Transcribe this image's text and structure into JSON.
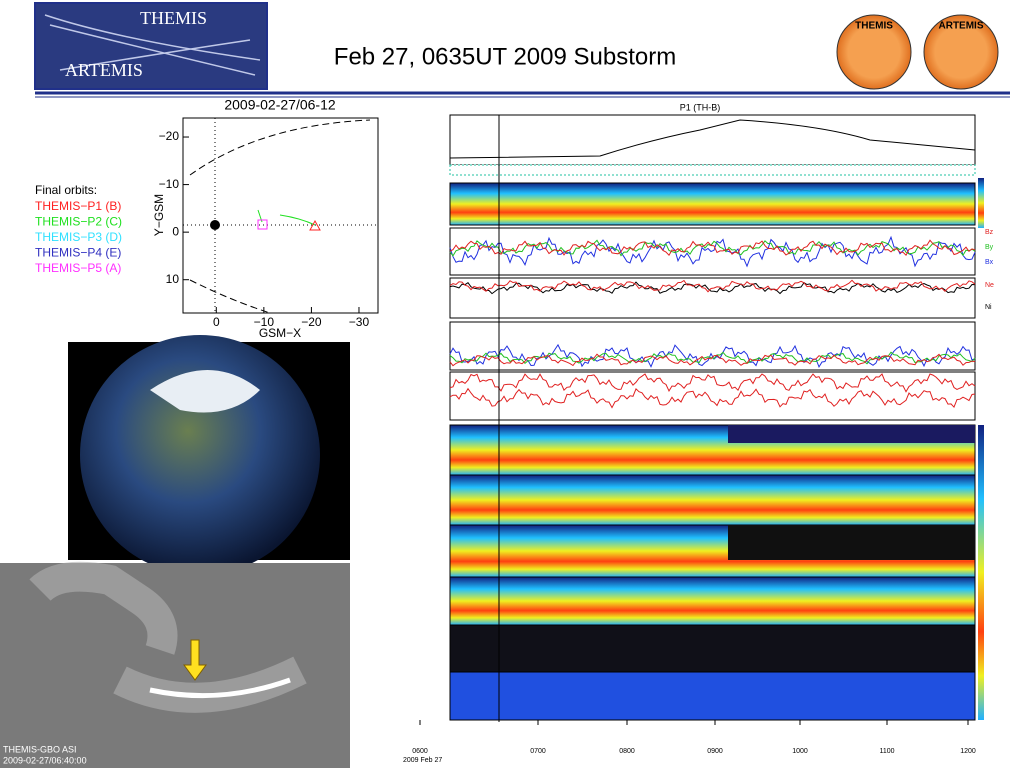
{
  "header": {
    "title": "Feb 27, 0635UT 2009 Substorm",
    "logo_top": "THEMIS",
    "logo_bottom": "ARTEMIS",
    "badge_left": "THEMIS",
    "badge_right": "ARTEMIS"
  },
  "orbit_plot": {
    "title": "2009-02-27/06-12",
    "xlabel": "GSM−X",
    "ylabel": "Y−GSM",
    "xticks": [
      0,
      {
        "value": -10,
        "label": "−10"
      },
      {
        "value": -20,
        "label": "−20"
      },
      {
        "value": -30,
        "label": "−30"
      }
    ],
    "yticks": [
      {
        "value": -20,
        "label": "−20"
      },
      {
        "value": -10,
        "label": "−10"
      },
      0,
      10
    ],
    "xlim": [
      7,
      -34
    ],
    "ylim": [
      -24,
      17
    ],
    "legend_title": "Final orbits:",
    "legend": [
      {
        "name": "THEMIS−P1 (B)",
        "color": "#ff2020"
      },
      {
        "name": "THEMIS−P2 (C)",
        "color": "#20e020"
      },
      {
        "name": "THEMIS−P3 (D)",
        "color": "#30e0ff"
      },
      {
        "name": "THEMIS−P4 (E)",
        "color": "#3030c0"
      },
      {
        "name": "THEMIS−P5 (A)",
        "color": "#ff30ff"
      }
    ]
  },
  "summary": {
    "title": "P1 (TH-B)",
    "field_labels": [
      "Bz",
      "By",
      "Bx"
    ],
    "density_labels": [
      "Ne",
      "Ni"
    ],
    "times": [
      "0600",
      "0700",
      "0800",
      "0900",
      "1000",
      "1100",
      "1200"
    ],
    "date": "2009 Feb 27"
  },
  "asi": {
    "label": "THEMIS-GBO ASI",
    "time": "2009-02-27/06:40:00"
  }
}
